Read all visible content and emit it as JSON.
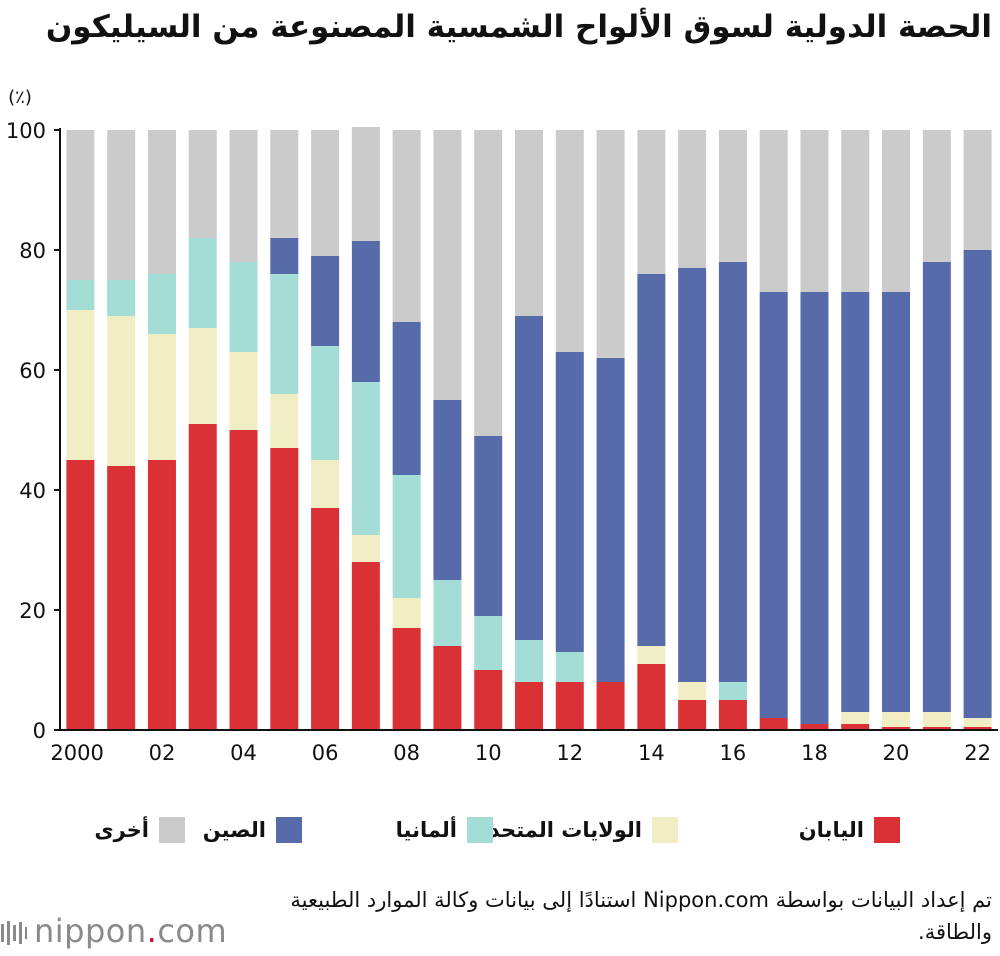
{
  "title": "الحصة الدولية لسوق الألواح الشمسية المصنوعة من السيليكون",
  "source": "تم إعداد البيانات بواسطة Nippon.com استنادًا إلى بيانات وكالة الموارد الطبيعية والطاقة.",
  "logo": {
    "name": "nippon",
    "dot": ".",
    "suffix": "com",
    "icon": "nippon-logo-icon"
  },
  "colors": {
    "japan": "#d93135",
    "usa": "#f1edc5",
    "germany": "#a4ddd6",
    "china": "#576aa9",
    "other": "#cbcbcb",
    "axis": "#111111"
  },
  "chart_data": {
    "type": "bar",
    "stacked": true,
    "title": "الحصة الدولية لسوق الألواح الشمسية المصنوعة من السيليكون",
    "ylabel": "(٪)",
    "xlabel": "",
    "ylim": [
      0,
      100
    ],
    "yticks": [
      0,
      20,
      40,
      60,
      80,
      100
    ],
    "categories": [
      "2000",
      "2001",
      "2002",
      "2003",
      "2004",
      "2005",
      "2006",
      "2007",
      "2008",
      "2009",
      "2010",
      "2011",
      "2012",
      "2013",
      "2014",
      "2015",
      "2016",
      "2017",
      "2018",
      "2019",
      "2020",
      "2021",
      "2022"
    ],
    "x_tick_labels": [
      "2000",
      "",
      "02",
      "",
      "04",
      "",
      "06",
      "",
      "08",
      "",
      "10",
      "",
      "12",
      "",
      "14",
      "",
      "16",
      "",
      "18",
      "",
      "20",
      "",
      "22"
    ],
    "series": [
      {
        "name": "اليابان",
        "key": "japan",
        "values": [
          45,
          44,
          45,
          51,
          50,
          47,
          37,
          28,
          17,
          14,
          10,
          8,
          8,
          8,
          11,
          5,
          5,
          2,
          1,
          1,
          0.5,
          0.5,
          0.5
        ]
      },
      {
        "name": "الولايات المتحدة",
        "key": "usa",
        "values": [
          25,
          25,
          21,
          16,
          13,
          9,
          8,
          4.5,
          5,
          0,
          0,
          0,
          0,
          0,
          3,
          3,
          0,
          0,
          0,
          2,
          2.5,
          2.5,
          1.5
        ]
      },
      {
        "name": "ألمانيا",
        "key": "germany",
        "values": [
          5,
          6,
          10,
          15,
          15,
          20,
          19,
          25.5,
          20.5,
          11,
          9,
          7,
          5,
          0,
          0,
          0,
          3,
          0,
          0,
          0,
          0,
          0,
          0
        ]
      },
      {
        "name": "الصين",
        "key": "china",
        "values": [
          0,
          0,
          0,
          0,
          0,
          6,
          15,
          23.5,
          25.5,
          30,
          30,
          54,
          50,
          54,
          62,
          69,
          70,
          71,
          72,
          70,
          70,
          75,
          78
        ]
      },
      {
        "name": "أخرى",
        "key": "other",
        "values": [
          25,
          25,
          24,
          18,
          22,
          18,
          21,
          19,
          32,
          45,
          51,
          31,
          37,
          38,
          24,
          23,
          22,
          27,
          27,
          27,
          27,
          22,
          20
        ]
      }
    ],
    "legend_position": "bottom"
  }
}
